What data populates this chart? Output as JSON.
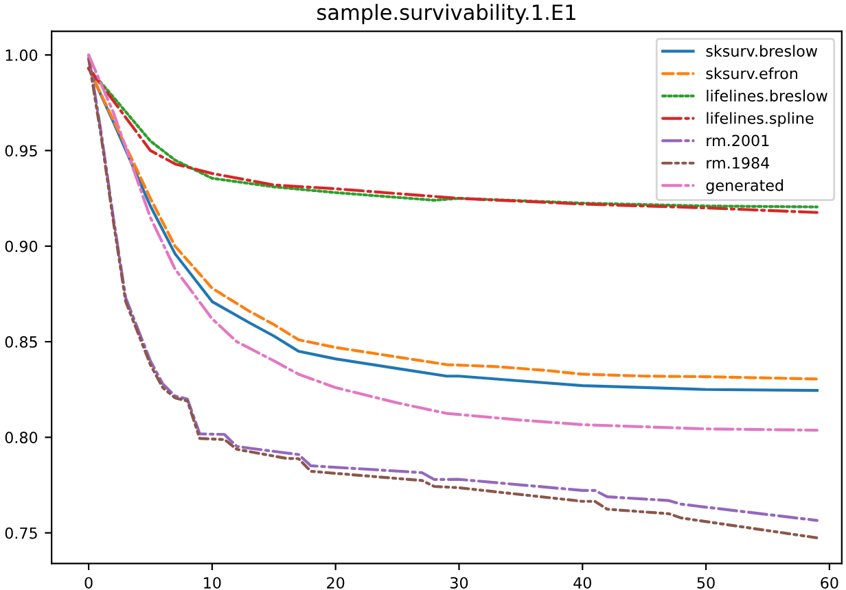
{
  "chart_data": {
    "type": "line",
    "title": "sample.survivability.1.E1",
    "xlim": [
      -3,
      61
    ],
    "xticks": [
      0,
      10,
      20,
      30,
      40,
      50,
      60
    ],
    "ylim": [
      0.734,
      1.0124
    ],
    "yticks": [
      {
        "value": 0.75,
        "label": "0.75"
      },
      {
        "value": 0.8,
        "label": "0.80"
      },
      {
        "value": 0.85,
        "label": "0.85"
      },
      {
        "value": 0.9,
        "label": "0.90"
      },
      {
        "value": 0.95,
        "label": "0.95"
      },
      {
        "value": 1.0,
        "label": "1.00"
      }
    ],
    "grid": false,
    "legend": "top right",
    "series": [
      {
        "name": "sksurv.breslow",
        "color": "#1f77b4",
        "line_style": "solid",
        "x": [
          0,
          2,
          5,
          7,
          10,
          13,
          15,
          17,
          20,
          25,
          29,
          30,
          35,
          40,
          45,
          50,
          59
        ],
        "values": [
          0.993,
          0.965,
          0.921,
          0.896,
          0.871,
          0.86,
          0.853,
          0.845,
          0.841,
          0.836,
          0.832,
          0.832,
          0.8295,
          0.827,
          0.826,
          0.825,
          0.8245
        ]
      },
      {
        "name": "sksurv.efron",
        "color": "#ff7f0e",
        "line_style": "dashed",
        "x": [
          0,
          2,
          5,
          7,
          10,
          13,
          15,
          17,
          20,
          25,
          29,
          33,
          37,
          40,
          45,
          50,
          59
        ],
        "values": [
          0.993,
          0.966,
          0.925,
          0.9,
          0.878,
          0.866,
          0.859,
          0.851,
          0.847,
          0.842,
          0.838,
          0.837,
          0.835,
          0.833,
          0.832,
          0.8317,
          0.8305
        ]
      },
      {
        "name": "lifelines.breslow",
        "color": "#2ca02c",
        "line_style": "dotted",
        "x": [
          0,
          2,
          5,
          7,
          10,
          15,
          20,
          28,
          30,
          40,
          50,
          59
        ],
        "values": [
          0.993,
          0.978,
          0.955,
          0.945,
          0.9355,
          0.931,
          0.928,
          0.924,
          0.925,
          0.9225,
          0.921,
          0.9205
        ]
      },
      {
        "name": "lifelines.spline",
        "color": "#d62728",
        "line_style": "dashdot",
        "x": [
          0,
          2,
          5,
          7,
          10,
          15,
          20,
          30,
          40,
          50,
          59
        ],
        "values": [
          0.993,
          0.976,
          0.95,
          0.943,
          0.938,
          0.932,
          0.93,
          0.925,
          0.922,
          0.92,
          0.9176
        ]
      },
      {
        "name": "rm.2001",
        "color": "#9467bd",
        "line_style": "dashdot",
        "x": [
          0,
          1,
          2,
          3,
          5,
          6,
          7,
          8,
          9,
          11,
          12,
          16,
          17,
          18,
          27,
          28,
          30,
          40,
          41,
          42,
          47,
          48,
          59
        ],
        "values": [
          1.0,
          0.96,
          0.915,
          0.873,
          0.84,
          0.828,
          0.8216,
          0.82,
          0.8018,
          0.8015,
          0.7952,
          0.7918,
          0.791,
          0.7851,
          0.7815,
          0.7779,
          0.778,
          0.7722,
          0.7722,
          0.7689,
          0.7669,
          0.765,
          0.7565
        ]
      },
      {
        "name": "rm.1984",
        "color": "#8c564b",
        "line_style": "dashdotdot",
        "x": [
          0,
          1,
          2,
          3,
          5,
          6,
          7,
          8,
          9,
          11,
          12,
          16,
          17,
          18,
          27,
          28,
          30,
          40,
          41,
          42,
          47,
          48,
          59
        ],
        "values": [
          0.998,
          0.958,
          0.913,
          0.871,
          0.838,
          0.826,
          0.8206,
          0.819,
          0.7994,
          0.7988,
          0.7937,
          0.789,
          0.7888,
          0.7822,
          0.7774,
          0.7743,
          0.7736,
          0.7665,
          0.7665,
          0.7624,
          0.76,
          0.7578,
          0.7474
        ]
      },
      {
        "name": "generated",
        "color": "#e377c2",
        "line_style": "dashdot",
        "x": [
          0,
          2,
          5,
          7,
          10,
          12,
          15,
          17,
          20,
          25,
          29,
          35,
          40,
          45,
          50,
          59
        ],
        "values": [
          1.0,
          0.97,
          0.915,
          0.888,
          0.862,
          0.85,
          0.84,
          0.833,
          0.826,
          0.818,
          0.8125,
          0.809,
          0.8066,
          0.8055,
          0.8044,
          0.8037
        ]
      }
    ]
  }
}
